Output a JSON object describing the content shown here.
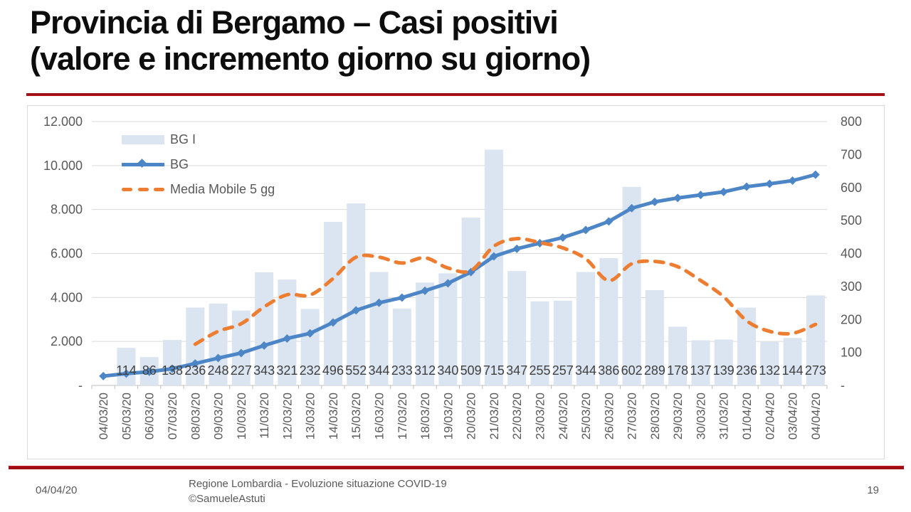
{
  "slide": {
    "title_line1": "Provincia di Bergamo – Casi positivi",
    "title_line2": "(valore e incremento giorno su giorno)",
    "footer_date": "04/04/20",
    "footer_center_line1": "Regione Lombardia - Evoluzione situazione COVID-19",
    "footer_center_line2": "©SamueleAstuti",
    "page_number": "19"
  },
  "chart_data": {
    "type": "combo",
    "categories": [
      "04/03/20",
      "05/03/20",
      "06/03/20",
      "07/03/20",
      "08/03/20",
      "09/03/20",
      "10/03/20",
      "11/03/20",
      "12/03/20",
      "13/03/20",
      "14/03/20",
      "15/03/20",
      "16/03/20",
      "17/03/20",
      "18/03/20",
      "19/03/20",
      "20/03/20",
      "21/03/20",
      "22/03/20",
      "23/03/20",
      "24/03/20",
      "25/03/20",
      "26/03/20",
      "27/03/20",
      "28/03/20",
      "29/03/20",
      "30/03/20",
      "31/03/20",
      "01/04/20",
      "02/04/20",
      "03/04/20",
      "04/04/20"
    ],
    "series": [
      {
        "name": "BG I",
        "type": "bar",
        "axis": "right",
        "color": "#dbe5f1",
        "values": [
          null,
          114,
          86,
          138,
          236,
          248,
          227,
          343,
          321,
          232,
          496,
          552,
          344,
          233,
          312,
          340,
          509,
          715,
          347,
          255,
          257,
          344,
          386,
          602,
          289,
          178,
          137,
          139,
          236,
          132,
          144,
          273
        ],
        "labels_shown": true
      },
      {
        "name": "BG",
        "type": "line",
        "axis": "left",
        "color": "#4d86c6",
        "marker": "diamond",
        "values": [
          423,
          537,
          623,
          761,
          997,
          1245,
          1472,
          1815,
          2136,
          2368,
          2864,
          3416,
          3760,
          3993,
          4305,
          4645,
          5154,
          5869,
          6216,
          6471,
          6728,
          7072,
          7458,
          8060,
          8349,
          8527,
          8664,
          8803,
          9039,
          9171,
          9315,
          9588
        ]
      },
      {
        "name": "Media Mobile 5 gg",
        "type": "line",
        "axis": "right",
        "color": "#ed7d31",
        "dashed": true,
        "smooth": true,
        "values": [
          null,
          null,
          null,
          null,
          125,
          164,
          187,
          238,
          275,
          274,
          324,
          389,
          389,
          371,
          387,
          356,
          348,
          422,
          445,
          433,
          417,
          384,
          318,
          369,
          376,
          360,
          318,
          269,
          196,
          164,
          158,
          185
        ]
      }
    ],
    "left_axis": {
      "min": 0,
      "max": 12000,
      "step": 2000,
      "tick_labels": [
        "-",
        "2.000",
        "4.000",
        "6.000",
        "8.000",
        "10.000",
        "12.000"
      ]
    },
    "right_axis": {
      "min": 0,
      "max": 800,
      "step": 100,
      "tick_labels": [
        "-",
        "100",
        "200",
        "300",
        "400",
        "500",
        "600",
        "700",
        "800"
      ]
    },
    "grid": true,
    "legend_position": "top-left-inside",
    "colors": {
      "gridline": "#d9d9d9",
      "axis_line": "#bfbfbf",
      "tick": "#bfbfbf",
      "axis_text": "#595959",
      "data_label_text": "#404040"
    }
  }
}
